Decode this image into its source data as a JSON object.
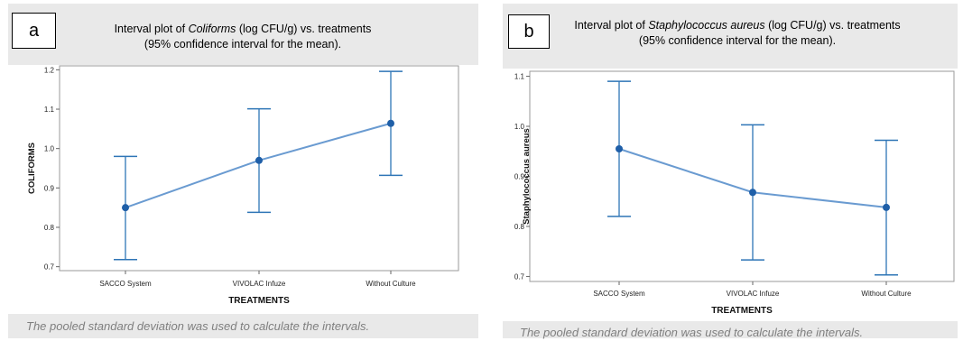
{
  "panels": [
    {
      "letter": "a",
      "title_pre": "Interval plot of ",
      "title_it": "Coliforms",
      "title_post": " (log CFU/g) vs. treatments",
      "title_line2": "(95% confidence interval for the mean).",
      "footnote": "The pooled standard deviation was used to calculate the intervals."
    },
    {
      "letter": "b",
      "title_pre": "Interval plot of ",
      "title_it": "Staphylococcus aureus",
      "title_post": " (log CFU/g) vs. treatments",
      "title_line2": "(95% confidence interval for the mean).",
      "footnote": "The pooled standard deviation was used to calculate the intervals."
    }
  ],
  "colors": {
    "series": "#2e75b6",
    "line": "#6a9bd1",
    "panel": "#e9e9e9"
  },
  "chart_data": [
    {
      "type": "interval",
      "xlabel": "TREATMENTS",
      "ylabel": "COLIFORMS",
      "categories": [
        "SACCO System",
        "VIVOLAC Infuze",
        "Without Culture"
      ],
      "means": [
        0.85,
        0.97,
        1.064
      ],
      "lower": [
        0.718,
        0.838,
        0.932
      ],
      "upper": [
        0.98,
        1.101,
        1.196
      ],
      "ylim": [
        0.69,
        1.21
      ],
      "yticks": [
        0.7,
        0.8,
        0.9,
        1.0,
        1.1,
        1.2
      ],
      "ytick_labels": [
        "0.7",
        "0.8",
        "0.9",
        "1.0",
        "1.1",
        "1.2"
      ],
      "grid": false
    },
    {
      "type": "interval",
      "xlabel": "TREATMENTS",
      "ylabel": "Staphylococcus aureus",
      "categories": [
        "SACCO System",
        "VIVOLAC Infuze",
        "Without Culture"
      ],
      "means": [
        0.955,
        0.868,
        0.838
      ],
      "lower": [
        0.82,
        0.733,
        0.703
      ],
      "upper": [
        1.09,
        1.003,
        0.972
      ],
      "ylim": [
        0.69,
        1.11
      ],
      "yticks": [
        0.7,
        0.8,
        0.9,
        1.0,
        1.1
      ],
      "ytick_labels": [
        "0.7",
        "0.8",
        "0.9",
        "1.0",
        "1.1"
      ],
      "grid": false
    }
  ]
}
